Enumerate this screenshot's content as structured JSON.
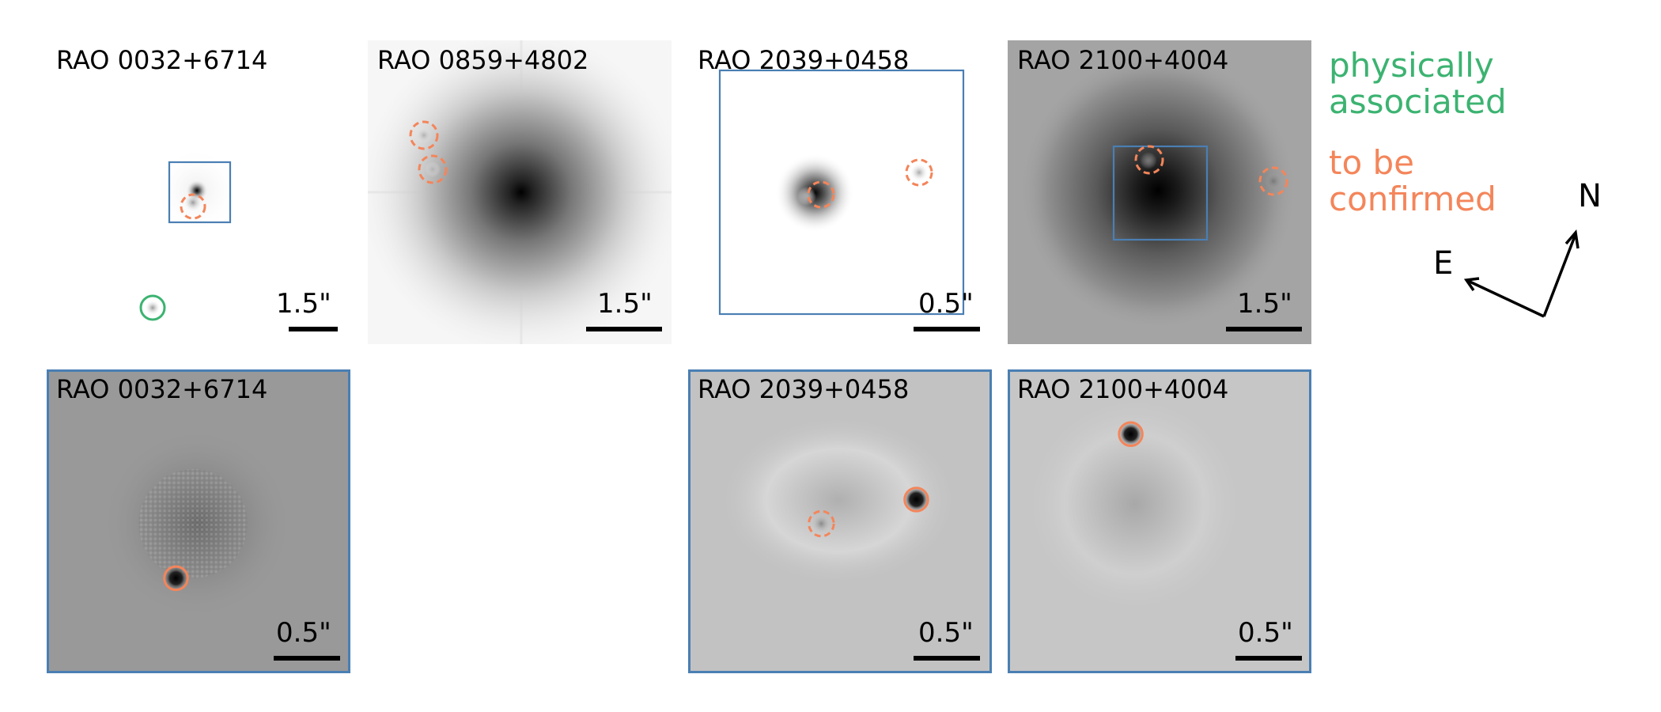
{
  "colors": {
    "physical": "#3cb371",
    "tbc": "#f4855a",
    "box": "#4a7fb3"
  },
  "top_row": [
    {
      "title": "RAO 0032+6714",
      "scale": "1.5\""
    },
    {
      "title": "RAO 0859+4802",
      "scale": "1.5\""
    },
    {
      "title": "RAO 2039+0458",
      "scale": "0.5\""
    },
    {
      "title": "RAO 2100+4004",
      "scale": "1.5\""
    }
  ],
  "bottom_row": [
    {
      "title": "RAO 0032+6714",
      "scale": "0.5\""
    },
    {
      "title": "RAO 2039+0458",
      "scale": "0.5\""
    },
    {
      "title": "RAO 2100+4004",
      "scale": "0.5\""
    }
  ],
  "legend": {
    "physical": "physically\nassociated",
    "tbc": "to be\nconfirmed"
  },
  "compass": {
    "north": "N",
    "east": "E"
  }
}
